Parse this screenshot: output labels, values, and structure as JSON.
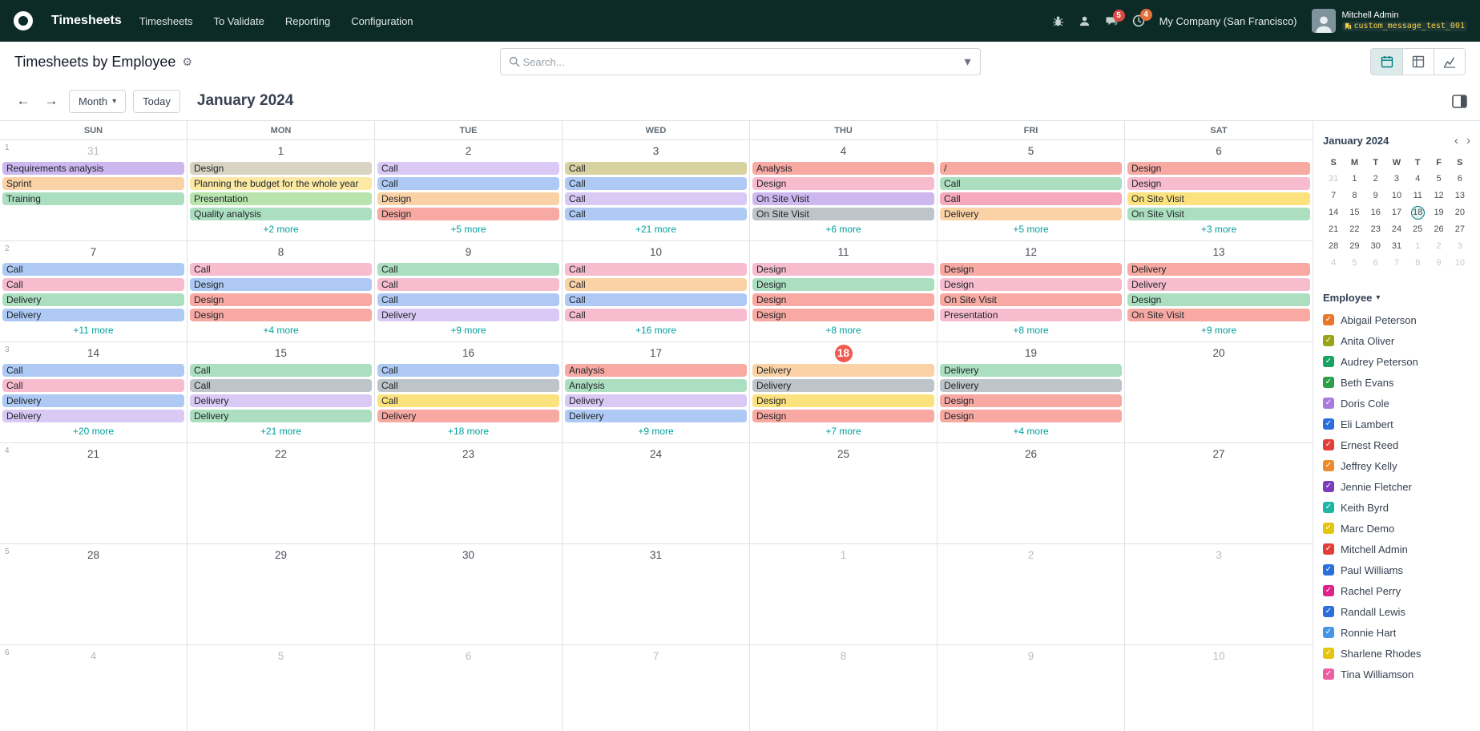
{
  "navbar": {
    "app_name": "Timesheets",
    "menus": [
      "Timesheets",
      "To Validate",
      "Reporting",
      "Configuration"
    ],
    "message_badge": "5",
    "activity_badge": "4",
    "company": "My Company (San Francisco)",
    "user_name": "Mitchell Admin",
    "user_badge": "custom_message_test_001"
  },
  "control_panel": {
    "title": "Timesheets by Employee",
    "search_placeholder": "Search..."
  },
  "toolbar": {
    "scale_label": "Month",
    "today_label": "Today",
    "period_title": "January 2024"
  },
  "icons": {
    "prev": "←",
    "next": "→",
    "dropdown_caret": "▾",
    "gear": "⚙",
    "chevron_left": "‹",
    "chevron_right": "›",
    "check": "✓"
  },
  "palette": {
    "purple": "#cdb7ef",
    "lavender": "#dac9f4",
    "peach": "#fbd2a6",
    "mint": "#abdfc0",
    "green": "#b9e4ae",
    "khaki": "#d8d2a0",
    "tan": "#d8d3c2",
    "yellow": "#fbe9a4",
    "gold": "#fce27e",
    "salmon": "#f8a9a2",
    "pink": "#f7bdcf",
    "rose": "#f5a9ba",
    "blue": "#aecaf4",
    "gray": "#bdc4ca"
  },
  "calendar": {
    "day_headers": [
      "SUN",
      "MON",
      "TUE",
      "WED",
      "THU",
      "FRI",
      "SAT"
    ],
    "weeks": [
      {
        "num": "1",
        "days": [
          {
            "d": "31",
            "muted": true,
            "events": [
              {
                "t": "Requirements analysis",
                "c": "purple"
              },
              {
                "t": "Sprint",
                "c": "peach"
              },
              {
                "t": "Training",
                "c": "mint"
              }
            ],
            "more": ""
          },
          {
            "d": "1",
            "events": [
              {
                "t": "Design",
                "c": "tan"
              },
              {
                "t": "Planning the budget for the whole year",
                "c": "yellow"
              },
              {
                "t": "Presentation",
                "c": "green"
              },
              {
                "t": "Quality analysis",
                "c": "mint"
              }
            ],
            "more": "+2 more"
          },
          {
            "d": "2",
            "events": [
              {
                "t": "Call",
                "c": "lavender"
              },
              {
                "t": "Call",
                "c": "blue"
              },
              {
                "t": "Design",
                "c": "peach"
              },
              {
                "t": "Design",
                "c": "salmon"
              }
            ],
            "more": "+5 more"
          },
          {
            "d": "3",
            "events": [
              {
                "t": "Call",
                "c": "khaki"
              },
              {
                "t": "Call",
                "c": "blue"
              },
              {
                "t": "Call",
                "c": "lavender"
              },
              {
                "t": "Call",
                "c": "blue"
              }
            ],
            "more": "+21 more"
          },
          {
            "d": "4",
            "events": [
              {
                "t": "Analysis",
                "c": "salmon"
              },
              {
                "t": "Design",
                "c": "pink"
              },
              {
                "t": "On Site Visit",
                "c": "purple"
              },
              {
                "t": "On Site Visit",
                "c": "gray"
              }
            ],
            "more": "+6 more"
          },
          {
            "d": "5",
            "events": [
              {
                "t": "/",
                "c": "salmon"
              },
              {
                "t": "Call",
                "c": "mint"
              },
              {
                "t": "Call",
                "c": "rose"
              },
              {
                "t": "Delivery",
                "c": "peach"
              }
            ],
            "more": "+5 more"
          },
          {
            "d": "6",
            "events": [
              {
                "t": "Design",
                "c": "salmon"
              },
              {
                "t": "Design",
                "c": "pink"
              },
              {
                "t": "On Site Visit",
                "c": "gold"
              },
              {
                "t": "On Site Visit",
                "c": "mint"
              }
            ],
            "more": "+3 more"
          }
        ]
      },
      {
        "num": "2",
        "days": [
          {
            "d": "7",
            "events": [
              {
                "t": "Call",
                "c": "blue"
              },
              {
                "t": "Call",
                "c": "pink"
              },
              {
                "t": "Delivery",
                "c": "mint"
              },
              {
                "t": "Delivery",
                "c": "blue"
              }
            ],
            "more": "+11 more"
          },
          {
            "d": "8",
            "events": [
              {
                "t": "Call",
                "c": "pink"
              },
              {
                "t": "Design",
                "c": "blue"
              },
              {
                "t": "Design",
                "c": "salmon"
              },
              {
                "t": "Design",
                "c": "salmon"
              }
            ],
            "more": "+4 more"
          },
          {
            "d": "9",
            "events": [
              {
                "t": "Call",
                "c": "mint"
              },
              {
                "t": "Call",
                "c": "pink"
              },
              {
                "t": "Call",
                "c": "blue"
              },
              {
                "t": "Delivery",
                "c": "lavender"
              }
            ],
            "more": "+9 more"
          },
          {
            "d": "10",
            "events": [
              {
                "t": "Call",
                "c": "pink"
              },
              {
                "t": "Call",
                "c": "peach"
              },
              {
                "t": "Call",
                "c": "blue"
              },
              {
                "t": "Call",
                "c": "pink"
              }
            ],
            "more": "+16 more"
          },
          {
            "d": "11",
            "events": [
              {
                "t": "Design",
                "c": "pink"
              },
              {
                "t": "Design",
                "c": "mint"
              },
              {
                "t": "Design",
                "c": "salmon"
              },
              {
                "t": "Design",
                "c": "salmon"
              }
            ],
            "more": "+8 more"
          },
          {
            "d": "12",
            "events": [
              {
                "t": "Design",
                "c": "salmon"
              },
              {
                "t": "Design",
                "c": "pink"
              },
              {
                "t": "On Site Visit",
                "c": "salmon"
              },
              {
                "t": "Presentation",
                "c": "pink"
              }
            ],
            "more": "+8 more"
          },
          {
            "d": "13",
            "events": [
              {
                "t": "Delivery",
                "c": "salmon"
              },
              {
                "t": "Delivery",
                "c": "pink"
              },
              {
                "t": "Design",
                "c": "mint"
              },
              {
                "t": "On Site Visit",
                "c": "salmon"
              }
            ],
            "more": "+9 more"
          }
        ]
      },
      {
        "num": "3",
        "days": [
          {
            "d": "14",
            "events": [
              {
                "t": "Call",
                "c": "blue"
              },
              {
                "t": "Call",
                "c": "pink"
              },
              {
                "t": "Delivery",
                "c": "blue"
              },
              {
                "t": "Delivery",
                "c": "lavender"
              }
            ],
            "more": "+20 more"
          },
          {
            "d": "15",
            "events": [
              {
                "t": "Call",
                "c": "mint"
              },
              {
                "t": "Call",
                "c": "gray"
              },
              {
                "t": "Delivery",
                "c": "lavender"
              },
              {
                "t": "Delivery",
                "c": "mint"
              }
            ],
            "more": "+21 more"
          },
          {
            "d": "16",
            "events": [
              {
                "t": "Call",
                "c": "blue"
              },
              {
                "t": "Call",
                "c": "gray"
              },
              {
                "t": "Call",
                "c": "gold"
              },
              {
                "t": "Delivery",
                "c": "salmon"
              }
            ],
            "more": "+18 more"
          },
          {
            "d": "17",
            "events": [
              {
                "t": "Analysis",
                "c": "salmon"
              },
              {
                "t": "Analysis",
                "c": "mint"
              },
              {
                "t": "Delivery",
                "c": "lavender"
              },
              {
                "t": "Delivery",
                "c": "blue"
              }
            ],
            "more": "+9 more"
          },
          {
            "d": "18",
            "today": true,
            "events": [
              {
                "t": "Delivery",
                "c": "peach"
              },
              {
                "t": "Delivery",
                "c": "gray"
              },
              {
                "t": "Design",
                "c": "gold"
              },
              {
                "t": "Design",
                "c": "salmon"
              }
            ],
            "more": "+7 more"
          },
          {
            "d": "19",
            "events": [
              {
                "t": "Delivery",
                "c": "mint"
              },
              {
                "t": "Delivery",
                "c": "gray"
              },
              {
                "t": "Design",
                "c": "salmon"
              },
              {
                "t": "Design",
                "c": "salmon"
              }
            ],
            "more": "+4 more"
          },
          {
            "d": "20",
            "events": [],
            "more": ""
          }
        ]
      },
      {
        "num": "4",
        "days": [
          {
            "d": "21"
          },
          {
            "d": "22"
          },
          {
            "d": "23"
          },
          {
            "d": "24"
          },
          {
            "d": "25"
          },
          {
            "d": "26"
          },
          {
            "d": "27"
          }
        ]
      },
      {
        "num": "5",
        "days": [
          {
            "d": "28"
          },
          {
            "d": "29"
          },
          {
            "d": "30"
          },
          {
            "d": "31"
          },
          {
            "d": "1",
            "muted": true
          },
          {
            "d": "2",
            "muted": true
          },
          {
            "d": "3",
            "muted": true
          }
        ]
      },
      {
        "num": "6",
        "days": [
          {
            "d": "4",
            "muted": true
          },
          {
            "d": "5",
            "muted": true
          },
          {
            "d": "6",
            "muted": true
          },
          {
            "d": "7",
            "muted": true
          },
          {
            "d": "8",
            "muted": true
          },
          {
            "d": "9",
            "muted": true
          },
          {
            "d": "10",
            "muted": true
          }
        ]
      }
    ]
  },
  "mini_calendar": {
    "title": "January 2024",
    "day_headers": [
      "S",
      "M",
      "T",
      "W",
      "T",
      "F",
      "S"
    ],
    "weeks": [
      [
        {
          "d": "31",
          "m": true
        },
        {
          "d": "1"
        },
        {
          "d": "2"
        },
        {
          "d": "3"
        },
        {
          "d": "4"
        },
        {
          "d": "5"
        },
        {
          "d": "6"
        }
      ],
      [
        {
          "d": "7"
        },
        {
          "d": "8"
        },
        {
          "d": "9"
        },
        {
          "d": "10"
        },
        {
          "d": "11"
        },
        {
          "d": "12"
        },
        {
          "d": "13"
        }
      ],
      [
        {
          "d": "14"
        },
        {
          "d": "15"
        },
        {
          "d": "16"
        },
        {
          "d": "17"
        },
        {
          "d": "18",
          "today": true
        },
        {
          "d": "19"
        },
        {
          "d": "20"
        }
      ],
      [
        {
          "d": "21"
        },
        {
          "d": "22"
        },
        {
          "d": "23"
        },
        {
          "d": "24"
        },
        {
          "d": "25"
        },
        {
          "d": "26"
        },
        {
          "d": "27"
        }
      ],
      [
        {
          "d": "28"
        },
        {
          "d": "29"
        },
        {
          "d": "30"
        },
        {
          "d": "31"
        },
        {
          "d": "1",
          "m": true
        },
        {
          "d": "2",
          "m": true
        },
        {
          "d": "3",
          "m": true
        }
      ],
      [
        {
          "d": "4",
          "m": true
        },
        {
          "d": "5",
          "m": true
        },
        {
          "d": "6",
          "m": true
        },
        {
          "d": "7",
          "m": true
        },
        {
          "d": "8",
          "m": true
        },
        {
          "d": "9",
          "m": true
        },
        {
          "d": "10",
          "m": true
        }
      ]
    ]
  },
  "filters": {
    "section_label": "Employee",
    "employees": [
      {
        "name": "Abigail Peterson",
        "color": "#e8772c"
      },
      {
        "name": "Anita Oliver",
        "color": "#9aa317"
      },
      {
        "name": "Audrey Peterson",
        "color": "#18a362"
      },
      {
        "name": "Beth Evans",
        "color": "#2e9e48"
      },
      {
        "name": "Doris Cole",
        "color": "#a97ae0"
      },
      {
        "name": "Eli Lambert",
        "color": "#2a6fdb"
      },
      {
        "name": "Ernest Reed",
        "color": "#e13e37"
      },
      {
        "name": "Jeffrey Kelly",
        "color": "#ef8b2e"
      },
      {
        "name": "Jennie Fletcher",
        "color": "#7d3bbd"
      },
      {
        "name": "Keith Byrd",
        "color": "#1fb6a6"
      },
      {
        "name": "Marc Demo",
        "color": "#e3c50e"
      },
      {
        "name": "Mitchell Admin",
        "color": "#e13e37"
      },
      {
        "name": "Paul Williams",
        "color": "#2a6fdb"
      },
      {
        "name": "Rachel Perry",
        "color": "#e0218a"
      },
      {
        "name": "Randall Lewis",
        "color": "#2a6fdb"
      },
      {
        "name": "Ronnie Hart",
        "color": "#4596e8"
      },
      {
        "name": "Sharlene Rhodes",
        "color": "#e3c50e"
      },
      {
        "name": "Tina Williamson",
        "color": "#ed5f9f"
      }
    ]
  }
}
